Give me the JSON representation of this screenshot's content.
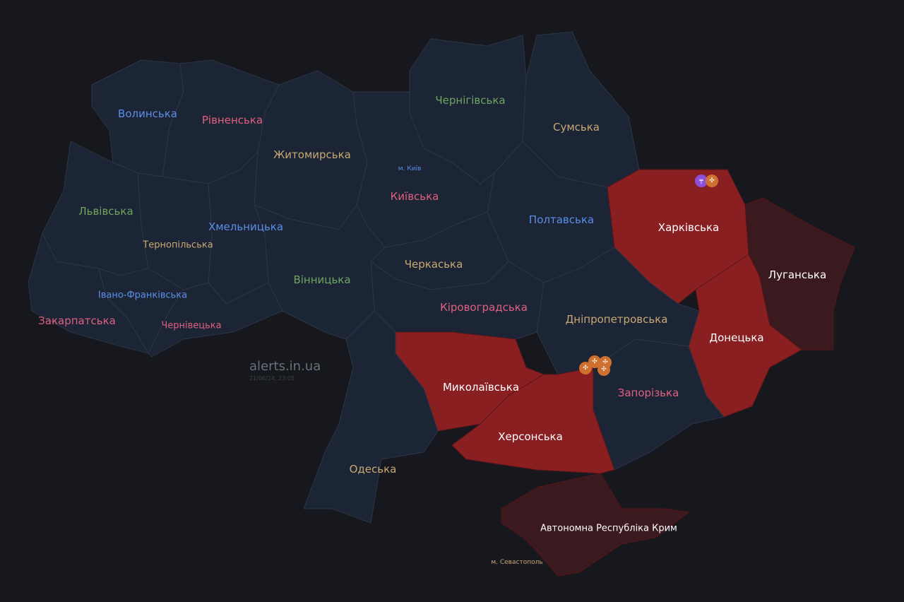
{
  "colors": {
    "background": "#16181d",
    "no_alert": "#1c2536",
    "alert": "#8a1f22",
    "occupied": "#3a1a1e",
    "border": "#2c3446"
  },
  "label_colors": {
    "blue": "#5b8ee6",
    "pink": "#e0607e",
    "green": "#6ea55f",
    "tan": "#c9a873",
    "white": "#ffffff"
  },
  "regions": [
    {
      "id": "volyn",
      "name": "Волинська",
      "status": "none",
      "label_color": "blue"
    },
    {
      "id": "rivne",
      "name": "Рівненська",
      "status": "none",
      "label_color": "pink"
    },
    {
      "id": "zhytomyr",
      "name": "Житомирська",
      "status": "none",
      "label_color": "tan"
    },
    {
      "id": "chernihiv",
      "name": "Чернігівська",
      "status": "none",
      "label_color": "green"
    },
    {
      "id": "sumy",
      "name": "Сумська",
      "status": "none",
      "label_color": "tan"
    },
    {
      "id": "kyivska",
      "name": "Київська",
      "status": "none",
      "label_color": "pink"
    },
    {
      "id": "poltava",
      "name": "Полтавська",
      "status": "none",
      "label_color": "blue"
    },
    {
      "id": "kharkiv",
      "name": "Харківська",
      "status": "alert",
      "label_color": "white"
    },
    {
      "id": "luhansk",
      "name": "Луганська",
      "status": "occupied",
      "label_color": "white"
    },
    {
      "id": "donetsk",
      "name": "Донецька",
      "status": "alert",
      "label_color": "white"
    },
    {
      "id": "zaporizhzhia",
      "name": "Запорізька",
      "status": "none",
      "label_color": "pink"
    },
    {
      "id": "dnipro",
      "name": "Дніпропетровська",
      "status": "none",
      "label_color": "tan"
    },
    {
      "id": "cherkasy",
      "name": "Черкаська",
      "status": "none",
      "label_color": "tan"
    },
    {
      "id": "kirovohrad",
      "name": "Кіровоградська",
      "status": "none",
      "label_color": "pink"
    },
    {
      "id": "mykolaiv",
      "name": "Миколаївська",
      "status": "alert",
      "label_color": "white"
    },
    {
      "id": "kherson",
      "name": "Херсонська",
      "status": "alert",
      "label_color": "white"
    },
    {
      "id": "odesa",
      "name": "Одеська",
      "status": "none",
      "label_color": "tan"
    },
    {
      "id": "vinnytsia",
      "name": "Вінницька",
      "status": "none",
      "label_color": "green"
    },
    {
      "id": "khmelnytskyi",
      "name": "Хмельницька",
      "status": "none",
      "label_color": "blue"
    },
    {
      "id": "ternopil",
      "name": "Тернопільська",
      "status": "none",
      "label_color": "tan"
    },
    {
      "id": "lviv",
      "name": "Львівська",
      "status": "none",
      "label_color": "green"
    },
    {
      "id": "ivano",
      "name": "Івано-Франківська",
      "status": "none",
      "label_color": "blue"
    },
    {
      "id": "chernivtsi",
      "name": "Чернівецька",
      "status": "none",
      "label_color": "pink"
    },
    {
      "id": "zakarpattia",
      "name": "Закарпатська",
      "status": "none",
      "label_color": "pink"
    },
    {
      "id": "crimea",
      "name": "Автономна Республіка Крим",
      "status": "occupied",
      "label_color": "white"
    }
  ],
  "cities": [
    {
      "id": "kyiv-city",
      "name": "м. Київ",
      "label_color": "blue"
    },
    {
      "id": "sevastopol",
      "name": "м. Севастополь",
      "label_color": "tan"
    }
  ],
  "threats": [
    {
      "region": "kharkiv",
      "type": "small-arms",
      "icon": "rifle-icon",
      "color": "#8b4fd8"
    },
    {
      "region": "kharkiv",
      "type": "artillery",
      "icon": "artillery-icon",
      "color": "#d0702e"
    },
    {
      "region": "zaporizhzhia",
      "type": "artillery",
      "icon": "artillery-icon",
      "color": "#d0702e"
    },
    {
      "region": "zaporizhzhia",
      "type": "artillery",
      "icon": "artillery-icon",
      "color": "#d0702e"
    },
    {
      "region": "zaporizhzhia",
      "type": "artillery",
      "icon": "artillery-icon",
      "color": "#d0702e"
    },
    {
      "region": "zaporizhzhia",
      "type": "artillery",
      "icon": "artillery-icon",
      "color": "#d0702e"
    }
  ],
  "watermark": {
    "site": "alerts.in.ua",
    "timestamp": "21/06/24, 23:05"
  }
}
